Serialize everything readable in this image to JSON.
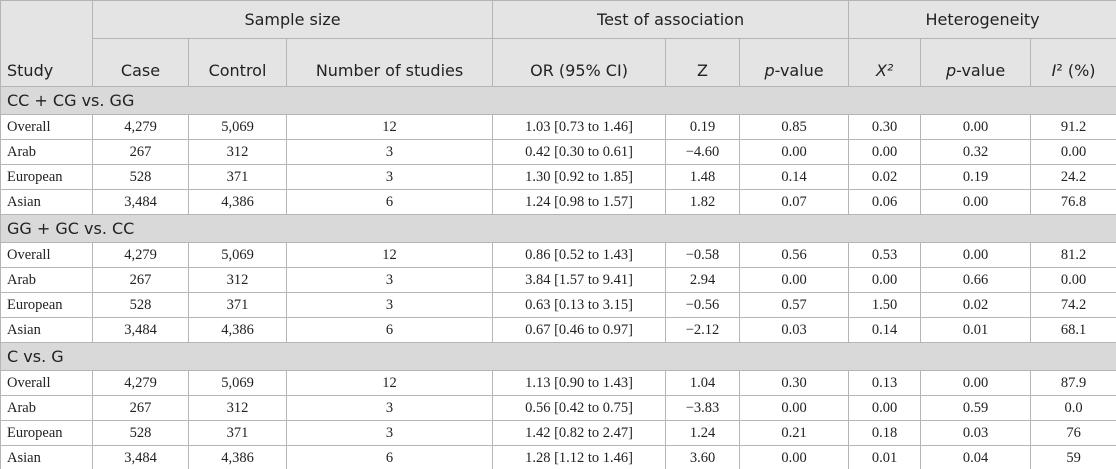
{
  "table": {
    "columns_top": [
      "Study",
      "Sample size",
      "Test of association",
      "Heterogeneity"
    ],
    "columns": [
      "Case",
      "Control",
      "Number of studies",
      "OR (95% CI)",
      "Z",
      "p-value",
      "X²",
      "p-value",
      "I² (%)"
    ],
    "groups": [
      {
        "title": "CC + CG vs. GG",
        "rows": [
          [
            "Overall",
            "4,279",
            "5,069",
            "12",
            "1.03 [0.73 to 1.46]",
            "0.19",
            "0.85",
            "0.30",
            "0.00",
            "91.2"
          ],
          [
            "Arab",
            "267",
            "312",
            "3",
            "0.42 [0.30 to 0.61]",
            "−4.60",
            "0.00",
            "0.00",
            "0.32",
            "0.00"
          ],
          [
            "European",
            "528",
            "371",
            "3",
            "1.30 [0.92 to 1.85]",
            "1.48",
            "0.14",
            "0.02",
            "0.19",
            "24.2"
          ],
          [
            "Asian",
            "3,484",
            "4,386",
            "6",
            "1.24 [0.98 to 1.57]",
            "1.82",
            "0.07",
            "0.06",
            "0.00",
            "76.8"
          ]
        ]
      },
      {
        "title": "GG + GC vs. CC",
        "rows": [
          [
            "Overall",
            "4,279",
            "5,069",
            "12",
            "0.86 [0.52 to 1.43]",
            "−0.58",
            "0.56",
            "0.53",
            "0.00",
            "81.2"
          ],
          [
            "Arab",
            "267",
            "312",
            "3",
            "3.84 [1.57 to 9.41]",
            "2.94",
            "0.00",
            "0.00",
            "0.66",
            "0.00"
          ],
          [
            "European",
            "528",
            "371",
            "3",
            "0.63 [0.13 to 3.15]",
            "−0.56",
            "0.57",
            "1.50",
            "0.02",
            "74.2"
          ],
          [
            "Asian",
            "3,484",
            "4,386",
            "6",
            "0.67 [0.46 to 0.97]",
            "−2.12",
            "0.03",
            "0.14",
            "0.01",
            "68.1"
          ]
        ]
      },
      {
        "title": "C vs. G",
        "rows": [
          [
            "Overall",
            "4,279",
            "5,069",
            "12",
            "1.13 [0.90 to 1.43]",
            "1.04",
            "0.30",
            "0.13",
            "0.00",
            "87.9"
          ],
          [
            "Arab",
            "267",
            "312",
            "3",
            "0.56 [0.42 to 0.75]",
            "−3.83",
            "0.00",
            "0.00",
            "0.59",
            "0.0"
          ],
          [
            "European",
            "528",
            "371",
            "3",
            "1.42 [0.82 to 2.47]",
            "1.24",
            "0.21",
            "0.18",
            "0.03",
            "76"
          ],
          [
            "Asian",
            "3,484",
            "4,386",
            "6",
            "1.28 [1.12 to 1.46]",
            "3.60",
            "0.00",
            "0.01",
            "0.04",
            "59"
          ]
        ]
      }
    ]
  }
}
